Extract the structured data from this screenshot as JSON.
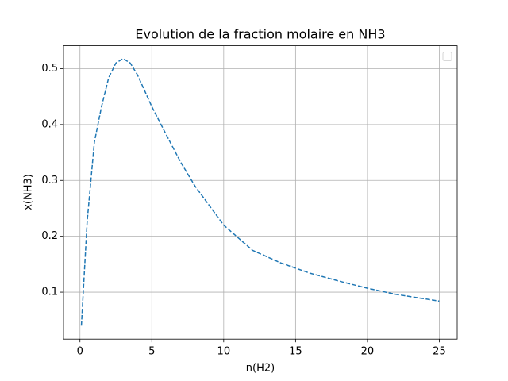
{
  "chart_data": {
    "type": "line",
    "title": "Evolution de la fraction molaire en NH3",
    "xlabel": "n(H2)",
    "ylabel": "x(NH3)",
    "x": [
      0.1,
      0.5,
      1,
      1.5,
      2,
      2.5,
      3,
      3.5,
      4,
      5,
      6,
      7,
      8,
      10,
      12,
      14,
      16,
      18,
      20,
      22,
      25
    ],
    "series": [
      {
        "color": "#1f77b4",
        "linestyle": "dashed",
        "values": [
          0.04,
          0.226,
          0.368,
          0.432,
          0.484,
          0.51,
          0.518,
          0.51,
          0.489,
          0.432,
          0.382,
          0.333,
          0.29,
          0.22,
          0.175,
          0.152,
          0.134,
          0.12,
          0.107,
          0.096,
          0.084
        ]
      }
    ],
    "xlim": [
      -1.145,
      26.245
    ],
    "ylim": [
      0.016,
      0.541
    ],
    "xticks": [
      0,
      5,
      10,
      15,
      20,
      25
    ],
    "yticks": [
      0.1,
      0.2,
      0.3,
      0.4,
      0.5
    ],
    "grid": true,
    "legend": "upper right"
  }
}
